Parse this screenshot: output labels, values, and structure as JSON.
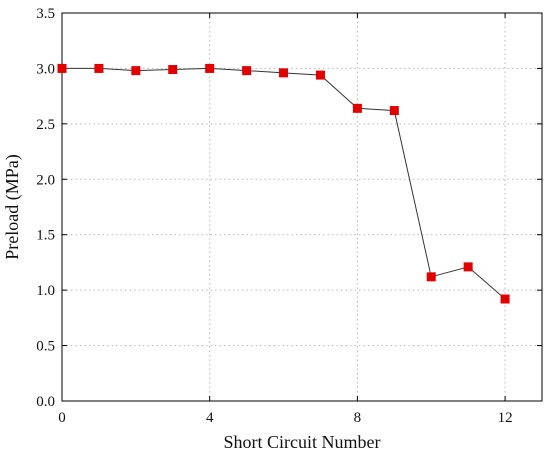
{
  "chart_data": {
    "type": "line",
    "title": "",
    "xlabel": "Short Circuit Number",
    "ylabel": "Preload (MPa)",
    "xlim": [
      0,
      13
    ],
    "ylim": [
      0,
      3.5
    ],
    "x_ticks": [
      0,
      4,
      8,
      12
    ],
    "x_tick_labels": [
      "0",
      "4",
      "8",
      "12"
    ],
    "y_ticks": [
      0,
      0.5,
      1,
      1.5,
      2,
      2.5,
      3,
      3.5
    ],
    "y_tick_labels": [
      "0.0",
      "0.5",
      "1.0",
      "1.5",
      "2.0",
      "2.5",
      "3.0",
      "3.5"
    ],
    "grid": true,
    "series": [
      {
        "color": "#e00000",
        "line_color": "#333333",
        "marker": "square",
        "x": [
          0,
          1,
          2,
          3,
          4,
          5,
          6,
          7,
          8,
          9,
          10,
          11,
          12
        ],
        "y": [
          3.0,
          3.0,
          2.98,
          2.99,
          3.0,
          2.98,
          2.96,
          2.94,
          2.64,
          2.62,
          1.12,
          1.21,
          0.92
        ]
      }
    ]
  }
}
